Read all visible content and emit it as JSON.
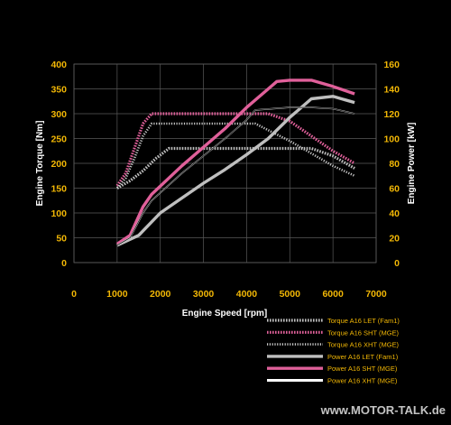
{
  "chart_data": {
    "type": "line",
    "xlabel": "Engine Speed [rpm]",
    "ylabel_left": "Engine Torque [Nm]",
    "ylabel_right": "Engine Power [kW]",
    "xlim": [
      0,
      7000
    ],
    "ylim_left": [
      0,
      400
    ],
    "ylim_right": [
      0,
      160
    ],
    "xticks": [
      0,
      1000,
      2000,
      3000,
      4000,
      5000,
      6000,
      7000
    ],
    "yticks_left": [
      0,
      50,
      100,
      150,
      200,
      250,
      300,
      350,
      400
    ],
    "yticks_right": [
      0,
      20,
      40,
      60,
      80,
      100,
      120,
      140,
      160
    ],
    "grid": true,
    "legend_position": "bottom-right",
    "series": [
      {
        "name": "Torque A16 LET (Fam1)",
        "axis": "left",
        "color": "#bfbfbf",
        "style": "dotted-thick",
        "x": [
          1000,
          1300,
          1600,
          1900,
          2200,
          3000,
          4000,
          5000,
          5500,
          6000,
          6500
        ],
        "y": [
          150,
          165,
          185,
          210,
          230,
          230,
          230,
          230,
          230,
          215,
          190
        ]
      },
      {
        "name": "Torque A16 SHT (MGE)",
        "axis": "left",
        "color": "#e0609a",
        "style": "dotted-thick",
        "x": [
          1000,
          1200,
          1400,
          1600,
          1800,
          2500,
          3500,
          4500,
          5000,
          5500,
          6000,
          6500
        ],
        "y": [
          155,
          180,
          230,
          280,
          300,
          300,
          300,
          300,
          285,
          255,
          225,
          200
        ]
      },
      {
        "name": "Torque A16 XHT (MGE)",
        "axis": "left",
        "color": "#c8c8c8",
        "style": "dotted-thin",
        "x": [
          1000,
          1200,
          1400,
          1600,
          1800,
          2500,
          3500,
          4200,
          5000,
          5500,
          6000,
          6500
        ],
        "y": [
          150,
          170,
          210,
          255,
          280,
          280,
          280,
          280,
          245,
          220,
          195,
          175
        ]
      },
      {
        "name": "Power A16 LET (Fam1)",
        "axis": "right",
        "color": "#bfbfbf",
        "style": "solid-thick",
        "x": [
          1000,
          1500,
          2000,
          2500,
          3000,
          3500,
          4000,
          4500,
          5000,
          5500,
          6000,
          6500
        ],
        "y": [
          14,
          22,
          40,
          52,
          64,
          75,
          87,
          100,
          117,
          132,
          134,
          129
        ]
      },
      {
        "name": "Power A16 SHT (MGE)",
        "axis": "right",
        "color": "#e0609a",
        "style": "solid-thick",
        "x": [
          1000,
          1300,
          1600,
          1800,
          2500,
          3000,
          3500,
          4000,
          4500,
          4700,
          5000,
          5500,
          6000,
          6500
        ],
        "y": [
          15,
          22,
          45,
          55,
          78,
          93,
          108,
          125,
          140,
          146,
          147,
          147,
          142,
          136
        ]
      },
      {
        "name": "Power A16 XHT (MGE)",
        "axis": "right",
        "color": "#d0d0d0",
        "style": "solid-thin",
        "x": [
          1000,
          1300,
          1600,
          1800,
          2500,
          3000,
          3500,
          4000,
          4200,
          5000,
          5500,
          6000,
          6500
        ],
        "y": [
          14,
          20,
          40,
          50,
          72,
          86,
          100,
          115,
          123,
          125,
          125,
          124,
          120
        ]
      }
    ]
  },
  "watermark": "www.MOTOR-TALK.de"
}
